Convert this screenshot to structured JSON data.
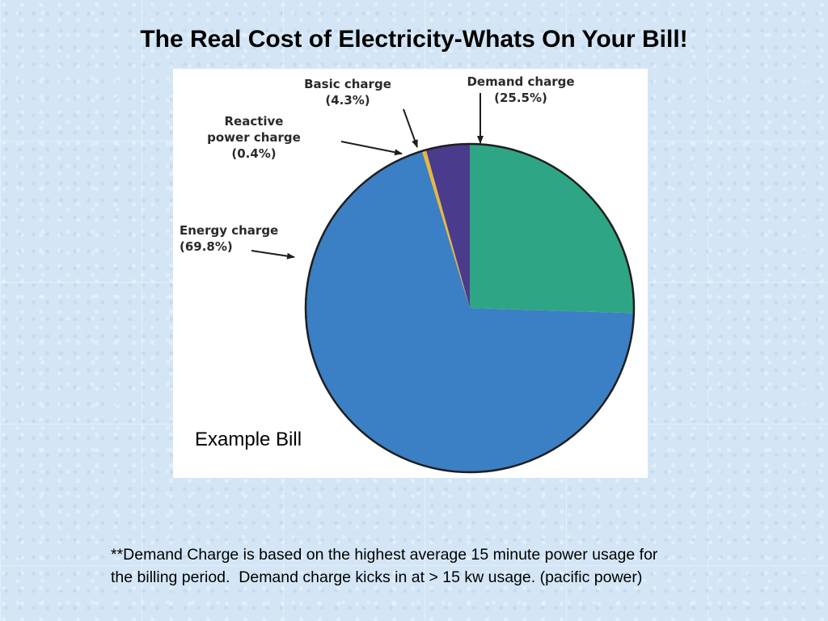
{
  "slide": {
    "title": "The Real Cost of Electricity-Whats On Your Bill!",
    "caption": "Example Bill",
    "footnote_lines": [
      "**Demand Charge is based on the highest average 15 minute power usage for",
      "the billing period.  Demand charge kicks in at > 15 kw usage. (pacific power)"
    ]
  },
  "chart_data": {
    "type": "pie",
    "title": "",
    "slices": [
      {
        "name": "Demand charge",
        "value": 25.5,
        "label_pct": "(25.5%)",
        "color": "#2ea584"
      },
      {
        "name": "Energy charge",
        "value": 69.8,
        "label_pct": "(69.8%)",
        "color": "#3b7fc4"
      },
      {
        "name": "Reactive power charge",
        "label_lines": [
          "Reactive",
          "power charge"
        ],
        "value": 0.4,
        "label_pct": "(0.4%)",
        "color": "#e8b83a"
      },
      {
        "name": "Basic charge",
        "value": 4.3,
        "label_pct": "(4.3%)",
        "color": "#4b3b8c"
      }
    ],
    "start_angle_deg": 0,
    "direction": "clockwise",
    "legend": "none",
    "outline_color": "#1e1e1e"
  }
}
